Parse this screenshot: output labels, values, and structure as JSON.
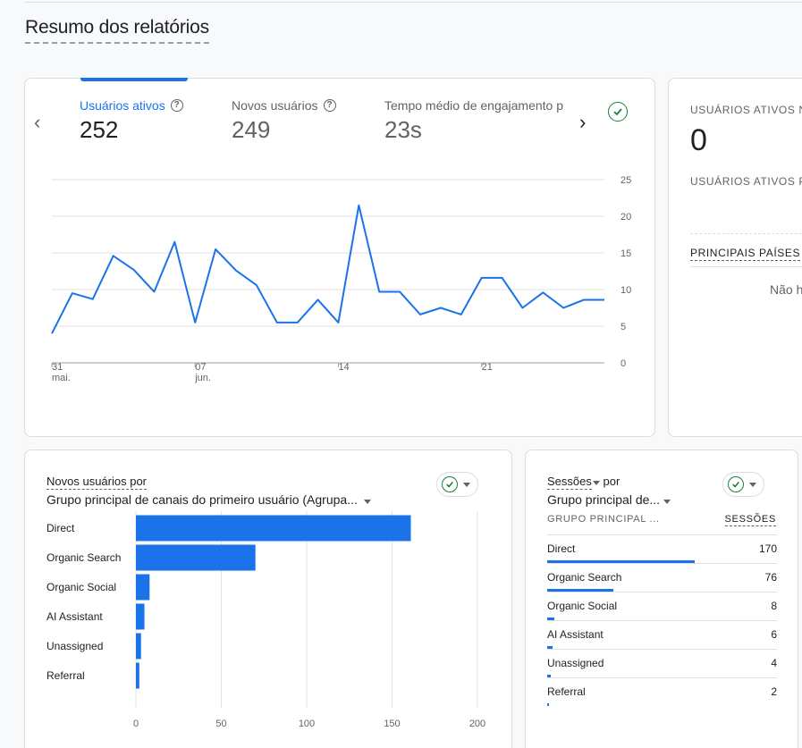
{
  "page": {
    "title": "Resumo dos relatórios"
  },
  "overview": {
    "metrics": [
      {
        "label": "Usuários ativos",
        "value": "252"
      },
      {
        "label": "Novos usuários",
        "value": "249"
      },
      {
        "label": "Tempo médio de engajamento p",
        "value": "23s"
      }
    ]
  },
  "realtime": {
    "title1": "USUÁRIOS ATIVOS NO",
    "value": "0",
    "title2": "USUÁRIOS ATIVOS PO",
    "countries_title": "PRINCIPAIS PAÍSES",
    "no_data": "Não h"
  },
  "channel_card": {
    "title_line1": "Novos usuários por",
    "title_line2": "Grupo principal de canais do primeiro usuário (Agrupa..."
  },
  "sessions_card": {
    "title_metric": "Sessões",
    "title_por": "por",
    "title_dim": "Grupo principal de...",
    "col_dim": "GRUPO PRINCIPAL ...",
    "col_metric": "SESSÕES",
    "rows": [
      {
        "name": "Direct",
        "value": "170"
      },
      {
        "name": "Organic Search",
        "value": "76"
      },
      {
        "name": "Organic Social",
        "value": "8"
      },
      {
        "name": "AI Assistant",
        "value": "6"
      },
      {
        "name": "Unassigned",
        "value": "4"
      },
      {
        "name": "Referral",
        "value": "2"
      }
    ],
    "row_values": [
      170,
      76,
      8,
      6,
      4,
      2
    ]
  },
  "chart_data": [
    {
      "type": "line",
      "series": [
        {
          "values": [
            4,
            9.5,
            8.7,
            14.6,
            12.7,
            9.7,
            16.5,
            5.5,
            15.5,
            12.6,
            10.6,
            5.5,
            5.5,
            8.6,
            5.5,
            21.5,
            9.7,
            9.7,
            6.6,
            7.5,
            6.6,
            11.6,
            11.6,
            7.5,
            9.6,
            7.5,
            8.6,
            8.6
          ]
        }
      ],
      "x_tick_labels": [
        {
          "day": "31",
          "month": "mai."
        },
        {
          "day": "07",
          "month": "jun."
        },
        {
          "day": "14",
          "month": ""
        },
        {
          "day": "21",
          "month": ""
        }
      ],
      "y_ticks": [
        "0",
        "5",
        "10",
        "15",
        "20",
        "25"
      ],
      "ylim": [
        0,
        25
      ],
      "grid": true,
      "color": "#1a73e8"
    },
    {
      "type": "bar",
      "orientation": "horizontal",
      "categories": [
        "Direct",
        "Organic Search",
        "Organic Social",
        "AI Assistant",
        "Unassigned",
        "Referral"
      ],
      "values": [
        161,
        70,
        8,
        5,
        3,
        2
      ],
      "x_ticks": [
        "0",
        "50",
        "100",
        "150",
        "200"
      ],
      "xlim": [
        0,
        200
      ],
      "grid": true,
      "color": "#1a73e8"
    }
  ]
}
